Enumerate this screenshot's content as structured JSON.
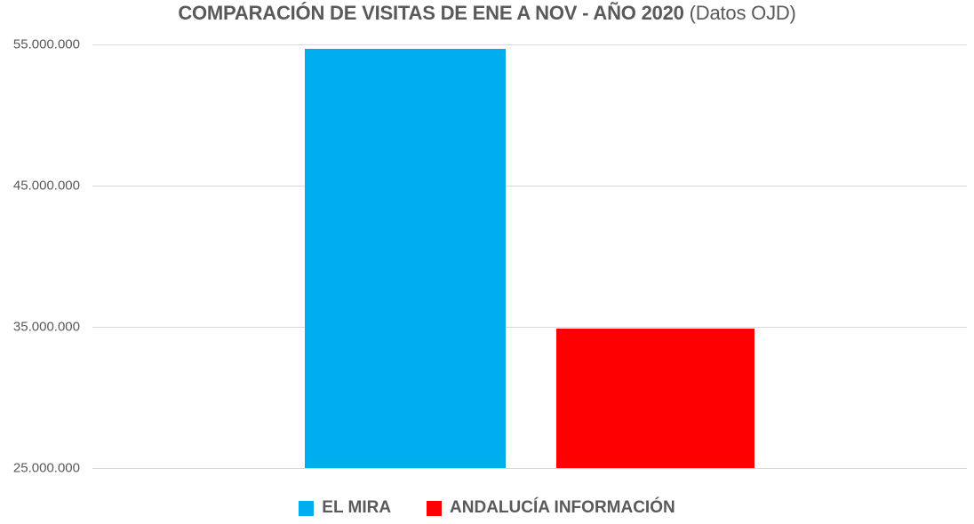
{
  "title": {
    "main": "COMPARACIÓN DE VISITAS DE ENE A NOV - AÑO 2020",
    "suffix": " (Datos OJD)"
  },
  "styles": {
    "text_color": "#595959",
    "gridline_color": "#D9D9D9"
  },
  "chart_data": {
    "type": "bar",
    "title": "COMPARACIÓN DE VISITAS DE ENE A NOV - AÑO 2020 (Datos OJD)",
    "xlabel": "",
    "ylabel": "",
    "ylim": [
      25000000,
      55000000
    ],
    "grid": true,
    "legend_position": "bottom",
    "yticks": [
      {
        "value": 55000000,
        "label": "55.000.000"
      },
      {
        "value": 45000000,
        "label": "45.000.000"
      },
      {
        "value": 35000000,
        "label": "35.000.000"
      },
      {
        "value": 25000000,
        "label": "25.000.000"
      }
    ],
    "series": [
      {
        "name": "EL MIRA",
        "value": 54700000,
        "color": "#00AEEF"
      },
      {
        "name": "ANDALUCÍA INFORMACIÓN",
        "value": 34900000,
        "color": "#FE0000"
      }
    ]
  }
}
